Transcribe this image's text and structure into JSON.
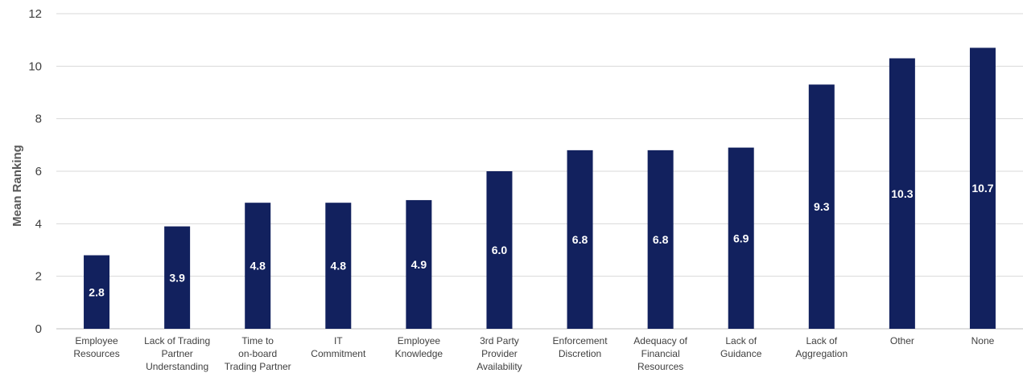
{
  "chart_data": {
    "type": "bar",
    "title": "",
    "xlabel": "",
    "ylabel": "Mean Ranking",
    "ylim": [
      0,
      12
    ],
    "yticks": [
      0,
      2,
      4,
      6,
      8,
      10,
      12
    ],
    "grid": true,
    "legend": "none",
    "bar_color": "#12215e",
    "categories": [
      [
        "Employee",
        "Resources"
      ],
      [
        "Lack of Trading",
        "Partner",
        "Understanding"
      ],
      [
        "Time to",
        "on-board",
        "Trading Partner"
      ],
      [
        "IT",
        "Commitment"
      ],
      [
        "Employee",
        "Knowledge"
      ],
      [
        "3rd Party",
        "Provider",
        "Availability"
      ],
      [
        "Enforcement",
        "Discretion"
      ],
      [
        "Adequacy of",
        "Financial",
        "Resources"
      ],
      [
        "Lack of",
        "Guidance"
      ],
      [
        "Lack of",
        "Aggregation"
      ],
      [
        "Other"
      ],
      [
        "None"
      ]
    ],
    "values": [
      2.8,
      3.9,
      4.8,
      4.8,
      4.9,
      6.0,
      6.8,
      6.8,
      6.9,
      9.3,
      10.3,
      10.7
    ],
    "data_labels": [
      "2.8",
      "3.9",
      "4.8",
      "4.8",
      "4.9",
      "6.0",
      "6.8",
      "6.8",
      "6.9",
      "9.3",
      "10.3",
      "10.7"
    ]
  }
}
